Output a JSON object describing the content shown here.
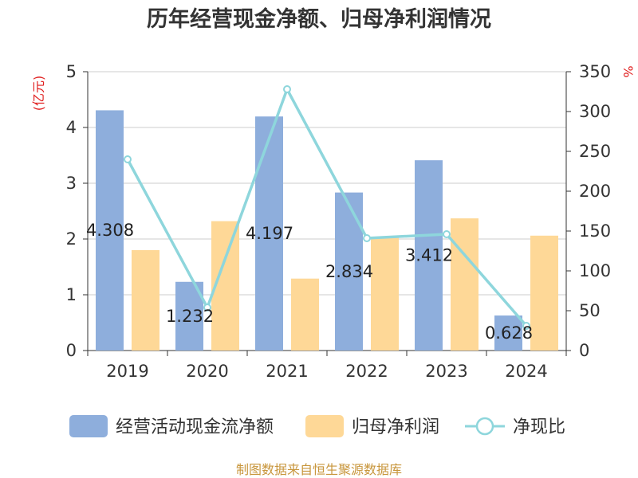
{
  "title": "历年经营现金净额、归母净利润情况",
  "source": "制图数据来自恒生聚源数据库",
  "chart_data": {
    "type": "bar+line",
    "categories": [
      "2019",
      "2020",
      "2021",
      "2022",
      "2023",
      "2024"
    ],
    "y_left": {
      "unit": "(亿元)",
      "ylim": [
        0,
        5
      ],
      "ticks": [
        "0",
        "1",
        "2",
        "3",
        "4",
        "5"
      ]
    },
    "y_right": {
      "unit": "%",
      "ylim": [
        0,
        350
      ],
      "ticks": [
        "0",
        "50",
        "100",
        "150",
        "200",
        "250",
        "300",
        "350"
      ]
    },
    "grid": true,
    "legend_position": "bottom",
    "series": [
      {
        "name": "经营活动现金流净额",
        "type": "bar",
        "axis": "left",
        "color": "#8eaedc",
        "values": [
          4.308,
          1.232,
          4.197,
          2.834,
          3.412,
          0.628
        ],
        "labels": [
          "4.308",
          "1.232",
          "4.197",
          "2.834",
          "3.412",
          "0.628"
        ]
      },
      {
        "name": "归母净利润",
        "type": "bar",
        "axis": "left",
        "color": "#fed897",
        "values": [
          1.8,
          2.32,
          1.29,
          2.02,
          2.37,
          2.06
        ]
      },
      {
        "name": "净现比",
        "type": "line",
        "axis": "right",
        "color": "#8ed6dc",
        "values": [
          240,
          54,
          328,
          141,
          146,
          31
        ]
      }
    ]
  }
}
